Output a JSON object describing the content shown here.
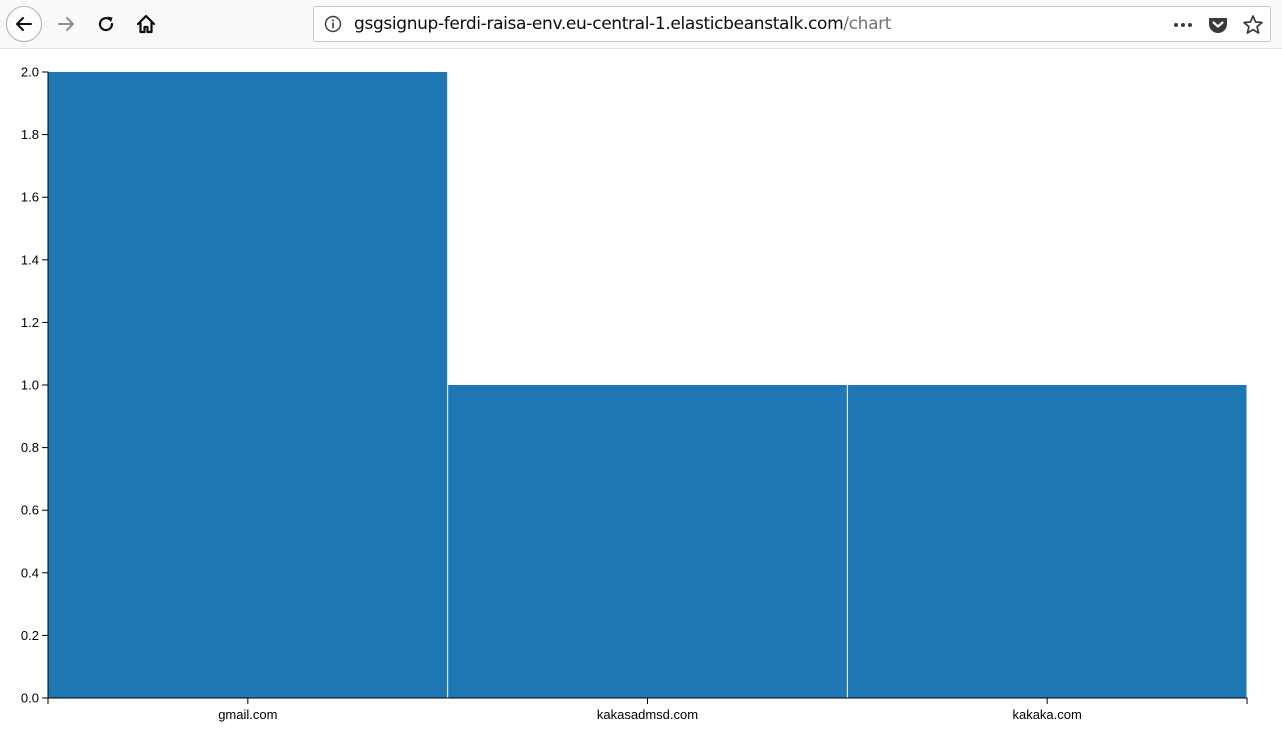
{
  "browser": {
    "url_host": "gsgsignup-ferdi-raisa-env.eu-central-1.elasticbeanstalk.com",
    "url_path": "/chart",
    "icons": {
      "back": "back-arrow-icon",
      "forward": "forward-arrow-icon",
      "reload": "reload-icon",
      "home": "home-icon",
      "info": "info-icon",
      "more": "more-icon",
      "pocket": "pocket-icon",
      "bookmark": "bookmark-star-icon"
    }
  },
  "chart_data": {
    "type": "bar",
    "categories": [
      "gmail.com",
      "kakasadmsd.com",
      "kakaka.com"
    ],
    "values": [
      2,
      1,
      1
    ],
    "ylim": [
      0,
      2
    ],
    "yticks": [
      "0.0",
      "0.2",
      "0.4",
      "0.6",
      "0.8",
      "1.0",
      "1.2",
      "1.4",
      "1.6",
      "1.8",
      "2.0"
    ],
    "title": "",
    "xlabel": "",
    "ylabel": "",
    "bar_color": "#1f77b4",
    "grid": false,
    "legend": "none"
  }
}
